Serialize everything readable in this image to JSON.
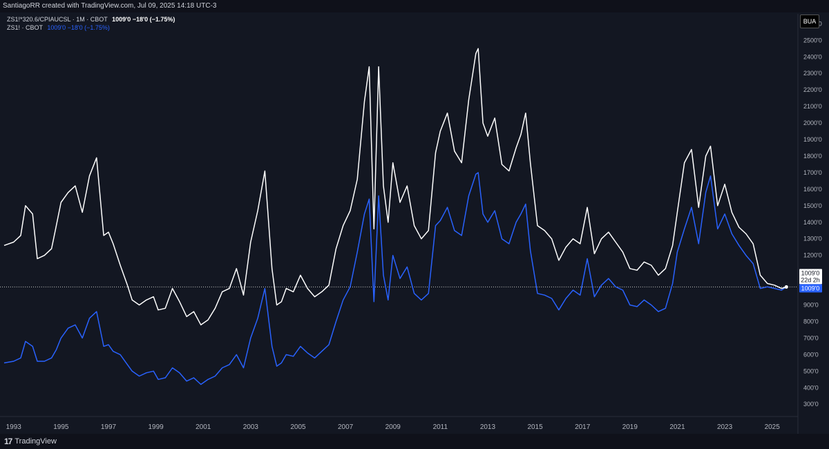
{
  "header": {
    "attribution": "SantiagoRR created with TradingView.com, Jul 09, 2025 14:18 UTC-3"
  },
  "legend": {
    "row1_label": "ZS1!*320.6/CPIAUCSL · 1M · CBOT",
    "row1_value": "1009'0  −18'0 (−1.75%)",
    "row2_label": "ZS1! · CBOT",
    "row2_value": "1009'0  −18'0 (−1.75%)"
  },
  "currency_button": "BUA",
  "footer": {
    "brand": "TradingView",
    "logo": "17"
  },
  "price_labels": {
    "white": "1009'0",
    "countdown": "22d 2h",
    "blue": "1009'0"
  },
  "colors": {
    "background": "#131722",
    "white_series": "#ffffff",
    "blue_series": "#2962ff"
  },
  "chart_data": {
    "type": "line",
    "x_range": [
      1992.6,
      2026.0
    ],
    "ylim": [
      230,
      2660
    ],
    "y_ticks": [
      {
        "value": 300,
        "label": "300'0"
      },
      {
        "value": 400,
        "label": "400'0"
      },
      {
        "value": 500,
        "label": "500'0"
      },
      {
        "value": 600,
        "label": "600'0"
      },
      {
        "value": 700,
        "label": "700'0"
      },
      {
        "value": 800,
        "label": "800'0"
      },
      {
        "value": 900,
        "label": "900'0"
      },
      {
        "value": 1100,
        "label": "1100'0"
      },
      {
        "value": 1200,
        "label": "1200'0"
      },
      {
        "value": 1300,
        "label": "1300'0"
      },
      {
        "value": 1400,
        "label": "1400'0"
      },
      {
        "value": 1500,
        "label": "1500'0"
      },
      {
        "value": 1600,
        "label": "1600'0"
      },
      {
        "value": 1700,
        "label": "1700'0"
      },
      {
        "value": 1800,
        "label": "1800'0"
      },
      {
        "value": 1900,
        "label": "1900'0"
      },
      {
        "value": 2000,
        "label": "2000'0"
      },
      {
        "value": 2100,
        "label": "2100'0"
      },
      {
        "value": 2200,
        "label": "2200'0"
      },
      {
        "value": 2300,
        "label": "2300'0"
      },
      {
        "value": 2400,
        "label": "2400'0"
      },
      {
        "value": 2500,
        "label": "2500'0"
      },
      {
        "value": 2600,
        "label": "2600'0"
      }
    ],
    "x_ticks": [
      {
        "value": 1993,
        "label": "1993"
      },
      {
        "value": 1995,
        "label": "1995"
      },
      {
        "value": 1997,
        "label": "1997"
      },
      {
        "value": 1999,
        "label": "1999"
      },
      {
        "value": 2001,
        "label": "2001"
      },
      {
        "value": 2003,
        "label": "2003"
      },
      {
        "value": 2005,
        "label": "2005"
      },
      {
        "value": 2007,
        "label": "2007"
      },
      {
        "value": 2009,
        "label": "2009"
      },
      {
        "value": 2011,
        "label": "2011"
      },
      {
        "value": 2013,
        "label": "2013"
      },
      {
        "value": 2015,
        "label": "2015"
      },
      {
        "value": 2017,
        "label": "2017"
      },
      {
        "value": 2019,
        "label": "2019"
      },
      {
        "value": 2021,
        "label": "2021"
      },
      {
        "value": 2023,
        "label": "2023"
      },
      {
        "value": 2025,
        "label": "2025"
      }
    ],
    "last_price": 1009,
    "series": [
      {
        "name": "ZS1!*320.6/CPIAUCSL",
        "color": "#ffffff",
        "x": [
          1992.6,
          1993.0,
          1993.3,
          1993.5,
          1993.8,
          1994.0,
          1994.3,
          1994.6,
          1994.8,
          1995.0,
          1995.3,
          1995.6,
          1995.9,
          1996.2,
          1996.5,
          1996.8,
          1997.0,
          1997.2,
          1997.5,
          1997.8,
          1998.0,
          1998.3,
          1998.6,
          1998.9,
          1999.1,
          1999.4,
          1999.7,
          2000.0,
          2000.3,
          2000.6,
          2000.9,
          2001.2,
          2001.5,
          2001.8,
          2002.1,
          2002.4,
          2002.7,
          2003.0,
          2003.3,
          2003.6,
          2003.9,
          2004.1,
          2004.3,
          2004.5,
          2004.8,
          2005.1,
          2005.4,
          2005.7,
          2006.0,
          2006.3,
          2006.6,
          2006.9,
          2007.2,
          2007.5,
          2007.8,
          2008.0,
          2008.2,
          2008.4,
          2008.6,
          2008.8,
          2009.0,
          2009.3,
          2009.6,
          2009.9,
          2010.2,
          2010.5,
          2010.8,
          2011.0,
          2011.3,
          2011.6,
          2011.9,
          2012.2,
          2012.5,
          2012.6,
          2012.8,
          2013.0,
          2013.3,
          2013.6,
          2013.9,
          2014.2,
          2014.4,
          2014.6,
          2014.8,
          2015.1,
          2015.4,
          2015.7,
          2016.0,
          2016.3,
          2016.6,
          2016.9,
          2017.2,
          2017.5,
          2017.8,
          2018.1,
          2018.4,
          2018.7,
          2019.0,
          2019.3,
          2019.6,
          2019.9,
          2020.2,
          2020.5,
          2020.8,
          2021.0,
          2021.3,
          2021.6,
          2021.9,
          2022.2,
          2022.4,
          2022.7,
          2023.0,
          2023.3,
          2023.6,
          2023.9,
          2024.2,
          2024.5,
          2024.8,
          2025.1,
          2025.4,
          2025.6
        ],
        "y": [
          1260,
          1280,
          1320,
          1500,
          1450,
          1180,
          1200,
          1240,
          1380,
          1520,
          1580,
          1620,
          1460,
          1680,
          1790,
          1320,
          1340,
          1270,
          1140,
          1020,
          930,
          900,
          930,
          950,
          870,
          880,
          1000,
          920,
          830,
          860,
          780,
          810,
          880,
          980,
          1000,
          1120,
          960,
          1280,
          1470,
          1710,
          1120,
          900,
          920,
          1000,
          980,
          1080,
          1000,
          950,
          980,
          1020,
          1240,
          1380,
          1470,
          1660,
          2130,
          2340,
          1360,
          2340,
          1620,
          1400,
          1760,
          1520,
          1620,
          1380,
          1300,
          1350,
          1820,
          1950,
          2060,
          1830,
          1760,
          2140,
          2420,
          2450,
          2000,
          1920,
          2030,
          1750,
          1710,
          1850,
          1930,
          2060,
          1760,
          1380,
          1350,
          1300,
          1170,
          1250,
          1300,
          1270,
          1490,
          1210,
          1300,
          1340,
          1280,
          1220,
          1120,
          1110,
          1160,
          1140,
          1080,
          1120,
          1260,
          1460,
          1760,
          1840,
          1490,
          1800,
          1860,
          1500,
          1630,
          1460,
          1370,
          1330,
          1270,
          1080,
          1030,
          1020,
          1000,
          1009
        ]
      },
      {
        "name": "ZS1!",
        "color": "#2962ff",
        "x": [
          1992.6,
          1993.0,
          1993.3,
          1993.5,
          1993.8,
          1994.0,
          1994.3,
          1994.6,
          1994.8,
          1995.0,
          1995.3,
          1995.6,
          1995.9,
          1996.2,
          1996.5,
          1996.8,
          1997.0,
          1997.2,
          1997.5,
          1997.8,
          1998.0,
          1998.3,
          1998.6,
          1998.9,
          1999.1,
          1999.4,
          1999.7,
          2000.0,
          2000.3,
          2000.6,
          2000.9,
          2001.2,
          2001.5,
          2001.8,
          2002.1,
          2002.4,
          2002.7,
          2003.0,
          2003.3,
          2003.6,
          2003.9,
          2004.1,
          2004.3,
          2004.5,
          2004.8,
          2005.1,
          2005.4,
          2005.7,
          2006.0,
          2006.3,
          2006.6,
          2006.9,
          2007.2,
          2007.5,
          2007.8,
          2008.0,
          2008.2,
          2008.4,
          2008.6,
          2008.8,
          2009.0,
          2009.3,
          2009.6,
          2009.9,
          2010.2,
          2010.5,
          2010.8,
          2011.0,
          2011.3,
          2011.6,
          2011.9,
          2012.2,
          2012.5,
          2012.6,
          2012.8,
          2013.0,
          2013.3,
          2013.6,
          2013.9,
          2014.2,
          2014.4,
          2014.6,
          2014.8,
          2015.1,
          2015.4,
          2015.7,
          2016.0,
          2016.3,
          2016.6,
          2016.9,
          2017.2,
          2017.5,
          2017.8,
          2018.1,
          2018.4,
          2018.7,
          2019.0,
          2019.3,
          2019.6,
          2019.9,
          2020.2,
          2020.5,
          2020.8,
          2021.0,
          2021.3,
          2021.6,
          2021.9,
          2022.2,
          2022.4,
          2022.7,
          2023.0,
          2023.3,
          2023.6,
          2023.9,
          2024.2,
          2024.5,
          2024.8,
          2025.1,
          2025.4,
          2025.6
        ],
        "y": [
          550,
          560,
          580,
          680,
          650,
          560,
          560,
          580,
          630,
          700,
          760,
          780,
          700,
          820,
          860,
          650,
          660,
          620,
          600,
          540,
          500,
          470,
          490,
          500,
          450,
          460,
          520,
          490,
          440,
          460,
          420,
          450,
          470,
          520,
          540,
          600,
          520,
          700,
          820,
          1000,
          650,
          530,
          550,
          600,
          590,
          650,
          610,
          580,
          620,
          660,
          800,
          930,
          1010,
          1220,
          1450,
          1540,
          920,
          1560,
          1080,
          930,
          1200,
          1060,
          1130,
          970,
          930,
          970,
          1380,
          1410,
          1490,
          1350,
          1320,
          1560,
          1690,
          1700,
          1450,
          1400,
          1470,
          1300,
          1270,
          1400,
          1450,
          1510,
          1230,
          970,
          960,
          940,
          870,
          940,
          990,
          960,
          1180,
          950,
          1020,
          1060,
          1010,
          990,
          900,
          890,
          930,
          900,
          860,
          880,
          1030,
          1220,
          1360,
          1490,
          1270,
          1580,
          1680,
          1360,
          1450,
          1330,
          1260,
          1200,
          1150,
          1000,
          1010,
          1000,
          990,
          1009
        ]
      }
    ]
  }
}
